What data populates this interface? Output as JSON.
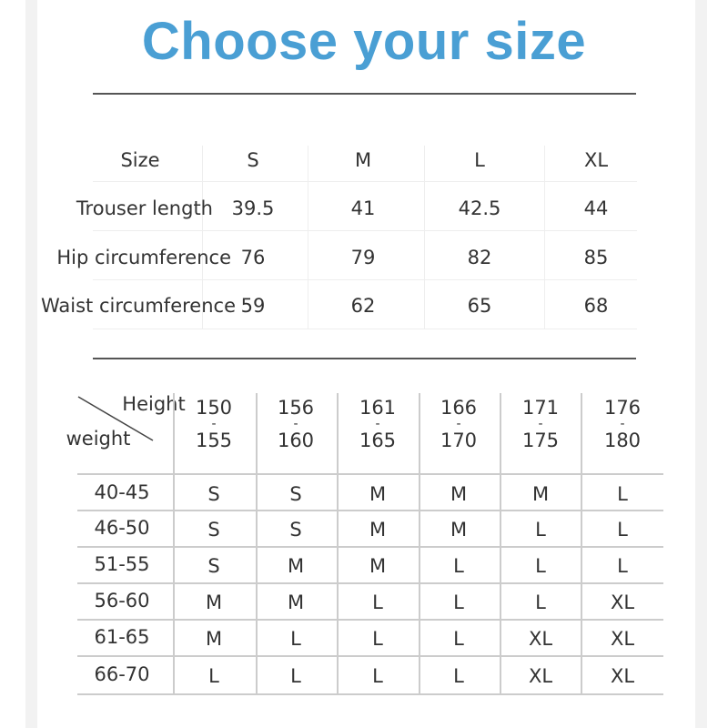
{
  "title": "Choose your size",
  "colors": {
    "title": "#4a9fd4",
    "text": "#333333"
  },
  "measurements": {
    "header_label": "Size",
    "sizes": [
      "S",
      "M",
      "L",
      "XL"
    ],
    "rows": [
      {
        "label": "Trouser length",
        "values": [
          "39.5",
          "41",
          "42.5",
          "44"
        ]
      },
      {
        "label": "Hip circumference",
        "values": [
          "76",
          "79",
          "82",
          "85"
        ]
      },
      {
        "label": "Waist circumference",
        "values": [
          "59",
          "62",
          "65",
          "68"
        ]
      }
    ]
  },
  "size_chart": {
    "corner_top": "Height",
    "corner_bottom": "weight",
    "heights": [
      {
        "from": "150",
        "sep": "-",
        "to": "155"
      },
      {
        "from": "156",
        "sep": "-",
        "to": "160"
      },
      {
        "from": "161",
        "sep": "-",
        "to": "165"
      },
      {
        "from": "166",
        "sep": "-",
        "to": "170"
      },
      {
        "from": "171",
        "sep": "-",
        "to": "175"
      },
      {
        "from": "176",
        "sep": "-",
        "to": "180"
      }
    ],
    "rows": [
      {
        "weight": "40-45",
        "sizes": [
          "S",
          "S",
          "M",
          "M",
          "M",
          "L"
        ]
      },
      {
        "weight": "46-50",
        "sizes": [
          "S",
          "S",
          "M",
          "M",
          "L",
          "L"
        ]
      },
      {
        "weight": "51-55",
        "sizes": [
          "S",
          "M",
          "M",
          "L",
          "L",
          "L"
        ]
      },
      {
        "weight": "56-60",
        "sizes": [
          "M",
          "M",
          "L",
          "L",
          "L",
          "XL"
        ]
      },
      {
        "weight": "61-65",
        "sizes": [
          "M",
          "L",
          "L",
          "L",
          "XL",
          "XL"
        ]
      },
      {
        "weight": "66-70",
        "sizes": [
          "L",
          "L",
          "L",
          "L",
          "XL",
          "XL"
        ]
      }
    ]
  }
}
